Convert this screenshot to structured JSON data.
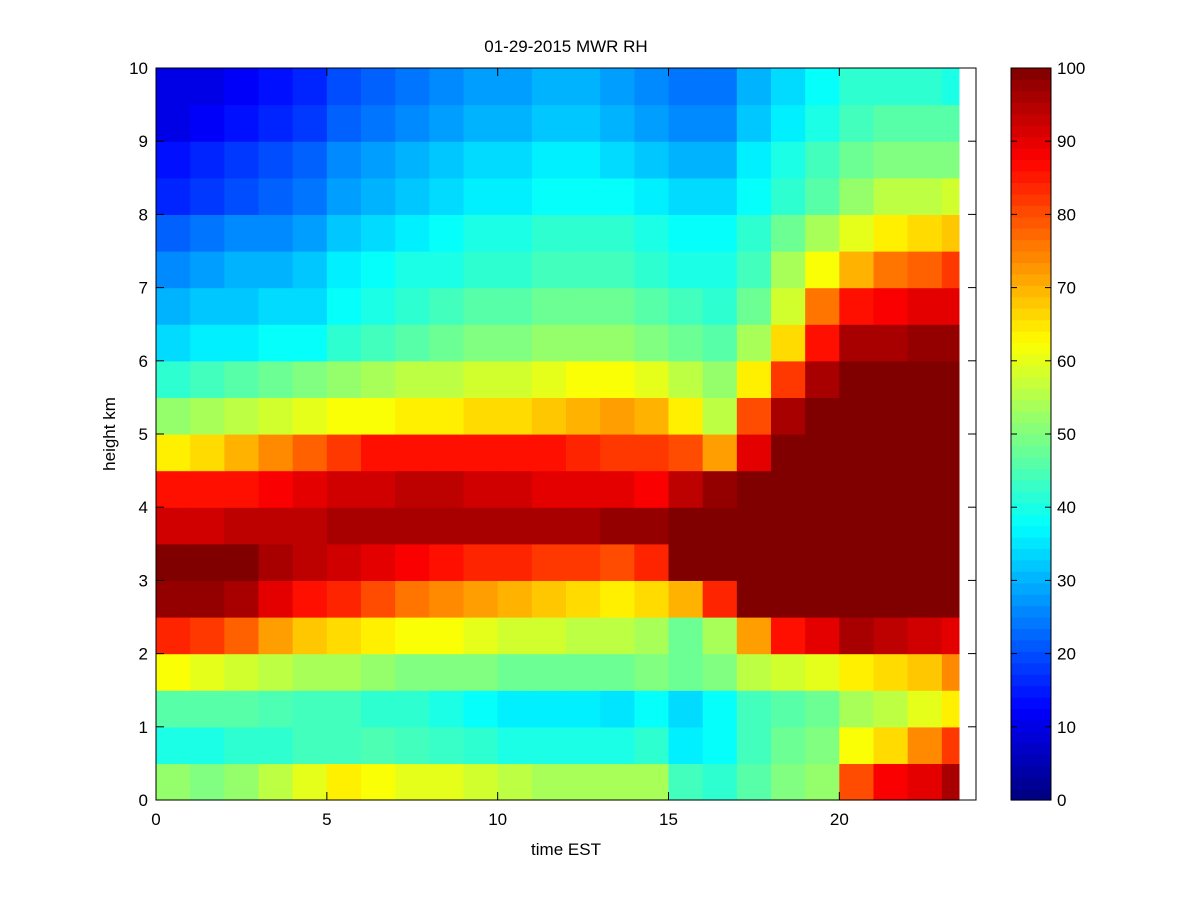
{
  "chart_data": {
    "type": "heatmap",
    "title": "01-29-2015 MWR RH",
    "xlabel": "time EST",
    "ylabel": "height km",
    "xlim": [
      0,
      24
    ],
    "ylim": [
      0,
      10
    ],
    "x_ticks": [
      "0",
      "5",
      "10",
      "15",
      "20"
    ],
    "y_ticks": [
      "0",
      "1",
      "2",
      "3",
      "4",
      "5",
      "6",
      "7",
      "8",
      "9",
      "10"
    ],
    "colorbar": {
      "colormap": "jet",
      "range": [
        0,
        100
      ],
      "ticks": [
        "0",
        "10",
        "20",
        "30",
        "40",
        "50",
        "60",
        "70",
        "80",
        "90",
        "100"
      ]
    },
    "time_hours": [
      0,
      1,
      2,
      3,
      4,
      5,
      6,
      7,
      8,
      9,
      10,
      11,
      12,
      13,
      14,
      15,
      16,
      17,
      18,
      19,
      20,
      21,
      22,
      23
    ],
    "height_km": [
      0,
      0.5,
      1,
      1.5,
      2,
      2.5,
      3,
      3.5,
      4,
      4.5,
      5,
      5.5,
      6,
      6.5,
      7,
      7.5,
      8,
      8.5,
      9,
      9.5
    ],
    "rh_percent": [
      [
        52,
        50,
        52,
        56,
        60,
        64,
        62,
        60,
        60,
        58,
        56,
        54,
        54,
        54,
        54,
        44,
        42,
        46,
        50,
        52,
        80,
        88,
        90,
        96
      ],
      [
        40,
        40,
        42,
        42,
        44,
        44,
        45,
        44,
        43,
        42,
        40,
        40,
        40,
        40,
        42,
        36,
        38,
        44,
        48,
        50,
        62,
        66,
        74,
        82
      ],
      [
        46,
        46,
        46,
        45,
        44,
        44,
        42,
        42,
        40,
        38,
        36,
        36,
        36,
        35,
        38,
        34,
        38,
        44,
        46,
        48,
        54,
        56,
        60,
        64
      ],
      [
        62,
        60,
        58,
        56,
        54,
        54,
        52,
        50,
        50,
        50,
        48,
        48,
        48,
        48,
        50,
        48,
        50,
        56,
        58,
        60,
        64,
        66,
        68,
        74
      ],
      [
        84,
        82,
        78,
        72,
        68,
        66,
        64,
        62,
        62,
        60,
        58,
        58,
        56,
        56,
        54,
        48,
        54,
        72,
        86,
        90,
        96,
        94,
        92,
        90
      ],
      [
        98,
        98,
        96,
        90,
        86,
        84,
        80,
        76,
        74,
        72,
        70,
        68,
        66,
        64,
        66,
        70,
        84,
        100,
        100,
        100,
        100,
        100,
        100,
        100
      ],
      [
        100,
        100,
        100,
        96,
        94,
        92,
        90,
        88,
        86,
        84,
        84,
        82,
        82,
        80,
        84,
        100,
        100,
        100,
        100,
        100,
        100,
        100,
        100,
        100
      ],
      [
        92,
        92,
        94,
        94,
        94,
        96,
        96,
        96,
        96,
        96,
        96,
        96,
        96,
        98,
        98,
        100,
        100,
        100,
        100,
        100,
        100,
        100,
        100,
        100
      ],
      [
        86,
        86,
        86,
        88,
        90,
        92,
        92,
        94,
        94,
        92,
        92,
        90,
        90,
        90,
        88,
        94,
        98,
        100,
        100,
        100,
        100,
        100,
        100,
        100
      ],
      [
        64,
        66,
        70,
        74,
        78,
        82,
        86,
        86,
        86,
        86,
        86,
        86,
        84,
        82,
        82,
        80,
        72,
        90,
        100,
        100,
        100,
        100,
        100,
        100
      ],
      [
        52,
        54,
        56,
        58,
        60,
        62,
        62,
        64,
        64,
        66,
        66,
        68,
        70,
        72,
        70,
        64,
        56,
        80,
        96,
        100,
        100,
        100,
        100,
        100
      ],
      [
        42,
        44,
        46,
        48,
        50,
        52,
        54,
        56,
        56,
        58,
        58,
        60,
        62,
        62,
        60,
        56,
        52,
        64,
        82,
        96,
        100,
        100,
        100,
        100
      ],
      [
        34,
        36,
        36,
        38,
        38,
        42,
        44,
        46,
        48,
        50,
        50,
        52,
        52,
        52,
        50,
        48,
        46,
        54,
        66,
        86,
        96,
        96,
        98,
        98
      ],
      [
        30,
        32,
        32,
        34,
        34,
        38,
        40,
        42,
        44,
        46,
        46,
        48,
        48,
        48,
        46,
        44,
        42,
        48,
        58,
        76,
        86,
        88,
        90,
        90
      ],
      [
        26,
        28,
        30,
        30,
        32,
        36,
        38,
        40,
        40,
        42,
        42,
        44,
        44,
        44,
        42,
        40,
        40,
        44,
        54,
        62,
        70,
        76,
        78,
        82
      ],
      [
        22,
        24,
        26,
        26,
        28,
        32,
        34,
        36,
        38,
        40,
        40,
        42,
        42,
        42,
        40,
        38,
        38,
        42,
        48,
        54,
        60,
        64,
        66,
        68
      ],
      [
        16,
        18,
        20,
        22,
        24,
        28,
        30,
        32,
        34,
        36,
        36,
        38,
        38,
        38,
        36,
        34,
        34,
        38,
        42,
        46,
        52,
        56,
        56,
        58
      ],
      [
        14,
        16,
        18,
        20,
        22,
        26,
        28,
        30,
        32,
        34,
        34,
        36,
        36,
        34,
        32,
        30,
        30,
        36,
        40,
        44,
        48,
        50,
        50,
        50
      ],
      [
        10,
        12,
        14,
        16,
        18,
        22,
        24,
        26,
        28,
        30,
        30,
        32,
        32,
        30,
        28,
        26,
        26,
        32,
        36,
        40,
        44,
        46,
        46,
        46
      ],
      [
        10,
        10,
        12,
        14,
        16,
        20,
        22,
        24,
        26,
        28,
        28,
        30,
        30,
        28,
        26,
        24,
        24,
        30,
        34,
        38,
        42,
        42,
        42,
        40
      ]
    ]
  }
}
